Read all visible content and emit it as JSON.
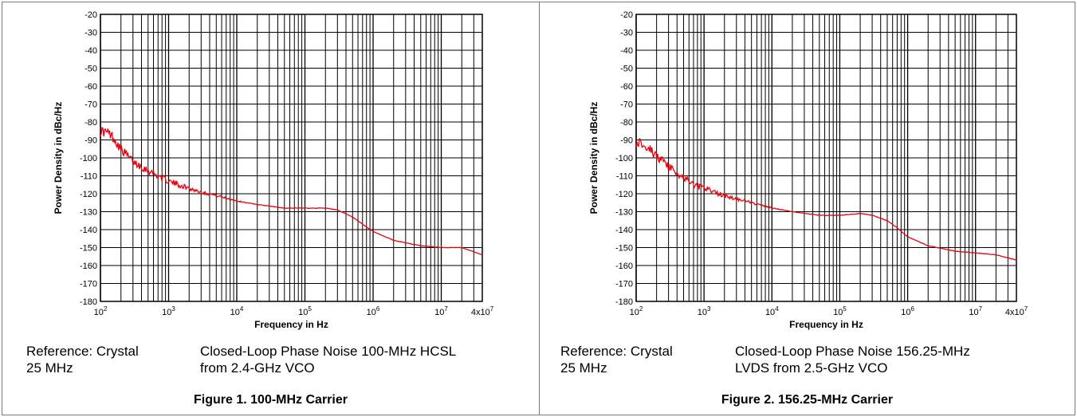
{
  "chart_data": [
    {
      "type": "line",
      "xlabel": "Frequency in Hz",
      "ylabel": "Power Density in dBc/Hz",
      "x_scale": "log",
      "xlim": [
        100,
        40000000
      ],
      "ylim": [
        -180,
        -20
      ],
      "yticks": [
        -20,
        -30,
        -40,
        -50,
        -60,
        -70,
        -80,
        -90,
        -100,
        -110,
        -120,
        -130,
        -140,
        -150,
        -160,
        -170,
        -180
      ],
      "xticks": [
        {
          "base": "10",
          "exp": "2"
        },
        {
          "base": "10",
          "exp": "3"
        },
        {
          "base": "10",
          "exp": "4"
        },
        {
          "base": "10",
          "exp": "5"
        },
        {
          "base": "10",
          "exp": "6"
        },
        {
          "base": "10",
          "exp": "7"
        },
        {
          "base": "4x10",
          "exp": "7"
        }
      ],
      "grid": true,
      "line_color": "#e8000b",
      "series": [
        {
          "x": [
            100,
            130,
            150,
            200,
            300,
            500,
            700,
            1000,
            2000,
            3000,
            5000,
            10000,
            20000,
            50000,
            100000,
            200000,
            300000,
            500000,
            700000,
            1000000,
            2000000,
            5000000,
            10000000,
            20000000,
            40000000
          ],
          "y": [
            -85,
            -86,
            -88,
            -95,
            -102,
            -107,
            -110,
            -113,
            -117,
            -119,
            -121,
            -124,
            -126,
            -128,
            -128,
            -128,
            -129,
            -133,
            -137,
            -141,
            -146,
            -149,
            -150,
            -150,
            -154
          ]
        }
      ],
      "caption_left": "Reference: Crystal\n25 MHz",
      "caption_right": "Closed-Loop Phase Noise 100-MHz HCSL\nfrom 2.4-GHz VCO",
      "figure_title": "Figure 1. 100-MHz Carrier"
    },
    {
      "type": "line",
      "xlabel": "Frequency in Hz",
      "ylabel": "Power Density in dBc/Hz",
      "x_scale": "log",
      "xlim": [
        100,
        40000000
      ],
      "ylim": [
        -180,
        -20
      ],
      "yticks": [
        -20,
        -30,
        -40,
        -50,
        -60,
        -70,
        -80,
        -90,
        -100,
        -110,
        -120,
        -130,
        -140,
        -150,
        -160,
        -170,
        -180
      ],
      "xticks": [
        {
          "base": "10",
          "exp": "2"
        },
        {
          "base": "10",
          "exp": "3"
        },
        {
          "base": "10",
          "exp": "4"
        },
        {
          "base": "10",
          "exp": "5"
        },
        {
          "base": "10",
          "exp": "6"
        },
        {
          "base": "10",
          "exp": "7"
        },
        {
          "base": "4x10",
          "exp": "7"
        }
      ],
      "grid": true,
      "line_color": "#e8000b",
      "series": [
        {
          "x": [
            100,
            130,
            150,
            200,
            300,
            500,
            700,
            1000,
            2000,
            3000,
            5000,
            10000,
            20000,
            50000,
            100000,
            200000,
            300000,
            500000,
            700000,
            1000000,
            2000000,
            5000000,
            10000000,
            20000000,
            40000000
          ],
          "y": [
            -91,
            -92,
            -94,
            -99,
            -105,
            -111,
            -115,
            -117,
            -121,
            -123,
            -125,
            -128,
            -130,
            -132,
            -132,
            -131,
            -132,
            -135,
            -139,
            -144,
            -149,
            -152,
            -153,
            -154,
            -157
          ]
        }
      ],
      "caption_left": "Reference: Crystal\n25 MHz",
      "caption_right": "Closed-Loop Phase Noise 156.25-MHz\nLVDS from 2.5-GHz VCO",
      "figure_title": "Figure 2. 156.25-MHz Carrier"
    }
  ]
}
